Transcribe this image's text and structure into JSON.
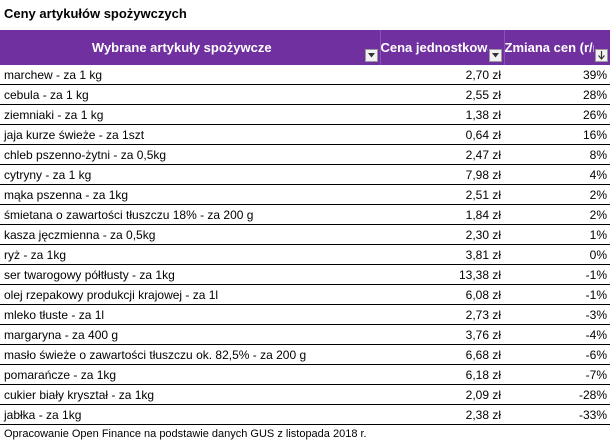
{
  "title": "Ceny artykułów spożywczych",
  "columns": [
    {
      "label": "Wybrane artykuły spożywcze"
    },
    {
      "label": "Cena jednostkowa"
    },
    {
      "label": "Zmiana cen (r/r)"
    }
  ],
  "header_color": "#7030a0",
  "dropdown_icon": "filter-dropdown-icon",
  "rows": [
    {
      "item": "marchew - za 1 kg",
      "price": "2,70 zł",
      "change": "39%"
    },
    {
      "item": "cebula - za 1 kg",
      "price": "2,55 zł",
      "change": "28%"
    },
    {
      "item": "ziemniaki - za 1 kg",
      "price": "1,38 zł",
      "change": "26%"
    },
    {
      "item": "jaja kurze świeże - za 1szt",
      "price": "0,64 zł",
      "change": "16%"
    },
    {
      "item": "chleb pszenno-żytni - za 0,5kg",
      "price": "2,47 zł",
      "change": "8%"
    },
    {
      "item": "cytryny - za 1 kg",
      "price": "7,98 zł",
      "change": "4%"
    },
    {
      "item": "mąka pszenna - za 1kg",
      "price": "2,51 zł",
      "change": "2%"
    },
    {
      "item": "śmietana o zawartości tłuszczu 18% - za 200 g",
      "price": "1,84 zł",
      "change": "2%"
    },
    {
      "item": "kasza jęczmienna - za 0,5kg",
      "price": "2,30 zł",
      "change": "1%"
    },
    {
      "item": "ryż - za 1kg",
      "price": "3,81 zł",
      "change": "0%"
    },
    {
      "item": "ser twarogowy półtłusty - za 1kg",
      "price": "13,38 zł",
      "change": "-1%"
    },
    {
      "item": "olej rzepakowy produkcji krajowej - za 1l",
      "price": "6,08 zł",
      "change": "-1%"
    },
    {
      "item": "mleko tłuste - za 1l",
      "price": "2,73 zł",
      "change": "-3%"
    },
    {
      "item": "margaryna - za 400 g",
      "price": "3,76 zł",
      "change": "-4%"
    },
    {
      "item": "masło świeże o zawartości tłuszczu ok. 82,5% - za 200 g",
      "price": "6,68 zł",
      "change": "-6%"
    },
    {
      "item": "pomarańcze - za 1kg",
      "price": "6,18 zł",
      "change": "-7%"
    },
    {
      "item": "cukier biały kryształ - za 1kg",
      "price": "2,09 zł",
      "change": "-28%"
    },
    {
      "item": "jabłka - za 1kg",
      "price": "2,38 zł",
      "change": "-33%"
    }
  ],
  "source": "Opracowanie Open Finance na podstawie danych GUS z listopada 2018 r."
}
